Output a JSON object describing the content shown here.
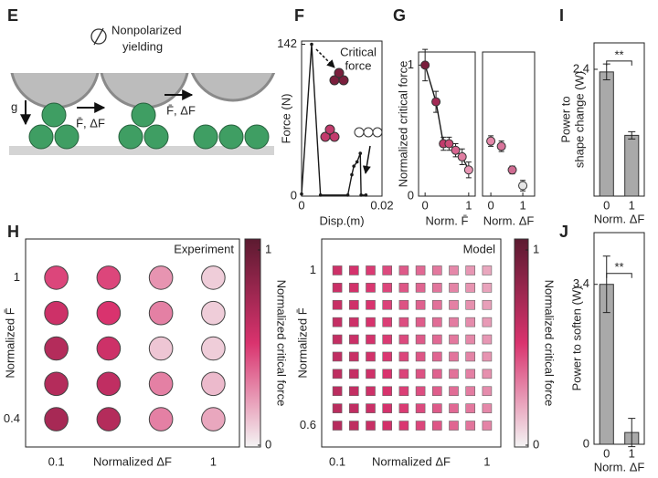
{
  "photo_panel": {
    "label": "E",
    "caption": [
      "Nonpolarized",
      "yielding"
    ],
    "gravity_label": "g",
    "arrow_labels": [
      "F̄, ΔF",
      "F̄, ΔF"
    ]
  },
  "chart_data": [
    {
      "label": "F",
      "type": "line",
      "xlabel": "Disp.(m)",
      "ylabel": "Force (N)",
      "annotation": [
        "Critical",
        "force"
      ],
      "x": [
        0,
        0.0025,
        0.0047,
        0.0115,
        0.0125,
        0.013,
        0.0138,
        0.0146,
        0.0148,
        0.016
      ],
      "values": [
        2,
        142,
        1,
        1,
        20,
        28,
        32,
        40,
        1,
        1
      ],
      "color": "#1a1a1a",
      "xlim": [
        0,
        0.02
      ],
      "ylim": [
        0,
        145
      ],
      "xticks": [
        0,
        0.02
      ],
      "yticks": [
        0,
        142
      ]
    },
    {
      "label": "G",
      "type": "line",
      "xlabel": "Norm. F̄",
      "ylabel": "Normalized critical force",
      "x": [
        0,
        0.25,
        0.42,
        0.55,
        0.7,
        0.85,
        1.0
      ],
      "values": [
        1.0,
        0.72,
        0.4,
        0.4,
        0.35,
        0.3,
        0.2
      ],
      "errors": [
        0.12,
        0.08,
        0.05,
        0.05,
        0.05,
        0.06,
        0.06
      ],
      "colors": [
        "#7a1f3d",
        "#a32a55",
        "#c23b6c",
        "#cc4c78",
        "#d86590",
        "#e07ea2",
        "#e896b4"
      ],
      "color": "#1a1a1a",
      "xlim": [
        -0.15,
        1.15
      ],
      "ylim": [
        0,
        1.1
      ],
      "xticks": [
        0,
        1
      ],
      "yticks": [
        0,
        1
      ]
    },
    {
      "type": "scatter",
      "xlabel": "Norm. ΔF",
      "x": [
        0,
        0.33,
        0.67,
        1
      ],
      "values": [
        0.42,
        0.38,
        0.2,
        0.08
      ],
      "errors": [
        0.04,
        0.04,
        0.03,
        0.04
      ],
      "colors": [
        "#e487a9",
        "#d8739a",
        "#cf6b91",
        "#e6e6e6"
      ],
      "xlim": [
        -0.26,
        1.37
      ],
      "ylim": [
        0,
        1.1
      ],
      "xticks": [
        0,
        1
      ]
    },
    {
      "label": "I",
      "type": "bar",
      "xlabel": "Norm. ΔF",
      "ylabel": [
        "Power to",
        "shape change (W)"
      ],
      "categories": [
        "0",
        "1"
      ],
      "values": [
        2.35,
        1.15
      ],
      "errors": [
        0.15,
        0.07
      ],
      "color": "#a9a9a9",
      "annotation": "**",
      "ylim": [
        0,
        2.9
      ],
      "yticks": [
        2.4
      ]
    },
    {
      "label": "H",
      "type": "heatmap",
      "marker": "circle",
      "annotation": "Experiment",
      "xlabel": "Normalized ΔF",
      "ylabel": "Normalized F̄",
      "x": [
        "0.1",
        null,
        null,
        "1"
      ],
      "y": [
        "1",
        null,
        null,
        null,
        "0.4"
      ],
      "values": [
        [
          0.45,
          0.45,
          0.25,
          0.1
        ],
        [
          0.55,
          0.5,
          0.3,
          0.1
        ],
        [
          0.65,
          0.55,
          0.12,
          0.1
        ],
        [
          0.65,
          0.6,
          0.3,
          0.15
        ],
        [
          0.7,
          0.65,
          0.3,
          0.2
        ]
      ],
      "colormap": [
        "#f4f4f4",
        "#d9336e",
        "#5c1a30"
      ],
      "clim": [
        0,
        1
      ],
      "colorbar_ticks": [
        0,
        1
      ],
      "colorbar_label": "Normalized critical force"
    },
    {
      "type": "heatmap",
      "marker": "square",
      "annotation": "Model",
      "xlabel": "Normalized ΔF",
      "ylabel": "Normalized F̄",
      "x": [
        "0.1",
        null,
        null,
        null,
        null,
        null,
        null,
        null,
        null,
        "1"
      ],
      "y": [
        "1",
        null,
        null,
        null,
        null,
        null,
        null,
        null,
        null,
        "0.6"
      ],
      "values": [
        [
          0.55,
          0.52,
          0.48,
          0.44,
          0.4,
          0.36,
          0.32,
          0.28,
          0.24,
          0.2
        ],
        [
          0.56,
          0.53,
          0.49,
          0.45,
          0.41,
          0.37,
          0.33,
          0.29,
          0.25,
          0.21
        ],
        [
          0.57,
          0.54,
          0.5,
          0.46,
          0.42,
          0.38,
          0.34,
          0.3,
          0.26,
          0.22
        ],
        [
          0.58,
          0.55,
          0.51,
          0.47,
          0.43,
          0.39,
          0.35,
          0.31,
          0.27,
          0.23
        ],
        [
          0.59,
          0.56,
          0.52,
          0.48,
          0.44,
          0.4,
          0.36,
          0.32,
          0.28,
          0.24
        ],
        [
          0.6,
          0.57,
          0.53,
          0.49,
          0.45,
          0.41,
          0.37,
          0.33,
          0.29,
          0.25
        ],
        [
          0.61,
          0.58,
          0.54,
          0.5,
          0.46,
          0.42,
          0.38,
          0.34,
          0.3,
          0.26
        ],
        [
          0.62,
          0.59,
          0.55,
          0.51,
          0.47,
          0.43,
          0.39,
          0.35,
          0.31,
          0.27
        ],
        [
          0.63,
          0.6,
          0.56,
          0.52,
          0.48,
          0.44,
          0.4,
          0.36,
          0.32,
          0.28
        ],
        [
          0.64,
          0.61,
          0.57,
          0.53,
          0.49,
          0.45,
          0.41,
          0.37,
          0.33,
          0.29
        ]
      ],
      "colormap": [
        "#f4f4f4",
        "#d9336e",
        "#5c1a30"
      ],
      "clim": [
        0,
        1
      ],
      "colorbar_ticks": [
        0,
        1
      ],
      "colorbar_label": "Normalized critical force"
    },
    {
      "label": "J",
      "type": "bar",
      "xlabel": "Norm. ΔF",
      "ylabel": "Power to soften (W)",
      "categories": [
        "0",
        "1"
      ],
      "values": [
        3.4,
        0.25
      ],
      "errors": [
        0.6,
        0.3
      ],
      "color": "#a9a9a9",
      "annotation": "**",
      "ylim": [
        0,
        4.5
      ],
      "yticks": [
        0,
        3.4
      ]
    }
  ]
}
